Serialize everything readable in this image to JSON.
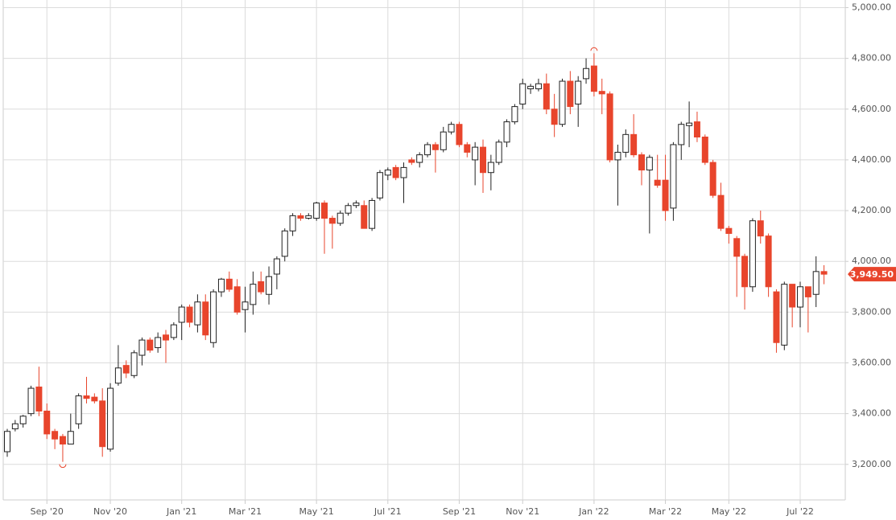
{
  "chart_data": {
    "type": "candlestick",
    "categories": [
      null,
      null,
      null,
      null,
      null,
      "Sep '20",
      null,
      null,
      null,
      null,
      null,
      null,
      null,
      "Nov '20",
      null,
      null,
      null,
      null,
      null,
      null,
      null,
      null,
      "Jan '21",
      null,
      null,
      null,
      null,
      null,
      null,
      null,
      "Mar '21",
      null,
      null,
      null,
      null,
      null,
      null,
      null,
      null,
      "May '21",
      null,
      null,
      null,
      null,
      null,
      null,
      null,
      null,
      "Jul '21",
      null,
      null,
      null,
      null,
      null,
      null,
      null,
      null,
      "Sep '21",
      null,
      null,
      null,
      null,
      null,
      null,
      null,
      "Nov '21",
      null,
      null,
      null,
      null,
      null,
      null,
      null,
      null,
      "Jan '22",
      null,
      null,
      null,
      null,
      null,
      null,
      null,
      null,
      "Mar '22",
      null,
      null,
      null,
      null,
      null,
      null,
      null,
      "May '22",
      null,
      null,
      null,
      null,
      null,
      null,
      null,
      null,
      "Jul '22",
      null,
      null,
      null
    ],
    "open": [
      3250,
      3340,
      3360,
      3400,
      3505,
      3410,
      3330,
      3310,
      3280,
      3360,
      3470,
      3465,
      3450,
      3260,
      3520,
      3590,
      3550,
      3630,
      3690,
      3660,
      3710,
      3700,
      3760,
      3820,
      3750,
      3840,
      3680,
      3880,
      3930,
      3900,
      3810,
      3830,
      3920,
      3870,
      3950,
      4020,
      4120,
      4180,
      4170,
      4170,
      4230,
      4170,
      4150,
      4190,
      4220,
      4220,
      4130,
      4250,
      4340,
      4370,
      4330,
      4400,
      4390,
      4420,
      4460,
      4440,
      4510,
      4540,
      4460,
      4400,
      4450,
      4350,
      4390,
      4470,
      4550,
      4620,
      4680,
      4680,
      4700,
      4600,
      4540,
      4710,
      4620,
      4720,
      4770,
      4670,
      4660,
      4400,
      4430,
      4500,
      4420,
      4360,
      4320,
      4320,
      4210,
      4460,
      4535,
      4550,
      4490,
      4390,
      4260,
      4130,
      4090,
      4020,
      3900,
      4160,
      4100,
      3880,
      3670,
      3910,
      3820,
      3900,
      3870,
      3960
    ],
    "high": [
      3340,
      3375,
      3395,
      3510,
      3585,
      3440,
      3340,
      3320,
      3400,
      3480,
      3545,
      3480,
      3500,
      3520,
      3670,
      3610,
      3650,
      3700,
      3700,
      3720,
      3730,
      3760,
      3830,
      3830,
      3870,
      3870,
      3890,
      3935,
      3960,
      3930,
      3900,
      3960,
      3960,
      3980,
      4020,
      4130,
      4190,
      4190,
      4190,
      4235,
      4240,
      4180,
      4200,
      4230,
      4240,
      4240,
      4250,
      4360,
      4370,
      4380,
      4390,
      4410,
      4430,
      4470,
      4470,
      4530,
      4550,
      4550,
      4470,
      4470,
      4480,
      4420,
      4480,
      4560,
      4620,
      4720,
      4700,
      4720,
      4740,
      4660,
      4720,
      4750,
      4730,
      4800,
      4820,
      4720,
      4670,
      4460,
      4520,
      4580,
      4430,
      4420,
      4420,
      4420,
      4470,
      4550,
      4630,
      4590,
      4500,
      4400,
      4310,
      4140,
      4100,
      4030,
      4170,
      4200,
      4110,
      3890,
      3920,
      3910,
      3920,
      3900,
      4020,
      3985
    ],
    "low": [
      3230,
      3330,
      3345,
      3390,
      3390,
      3300,
      3260,
      3210,
      3280,
      3340,
      3440,
      3440,
      3230,
      3250,
      3510,
      3540,
      3540,
      3590,
      3640,
      3640,
      3600,
      3690,
      3690,
      3740,
      3720,
      3690,
      3660,
      3860,
      3880,
      3790,
      3720,
      3790,
      3870,
      3830,
      3890,
      4000,
      4100,
      4160,
      4165,
      4160,
      4030,
      4050,
      4140,
      4180,
      4210,
      4130,
      4120,
      4240,
      4320,
      4320,
      4230,
      4380,
      4370,
      4410,
      4350,
      4430,
      4500,
      4450,
      4410,
      4300,
      4270,
      4280,
      4380,
      4450,
      4540,
      4600,
      4660,
      4670,
      4580,
      4490,
      4530,
      4580,
      4530,
      4700,
      4650,
      4580,
      4390,
      4220,
      4410,
      4410,
      4300,
      4110,
      4290,
      4160,
      4160,
      4400,
      4450,
      4470,
      4380,
      4250,
      4120,
      4070,
      3860,
      3810,
      3880,
      4070,
      3860,
      3640,
      3650,
      3740,
      3740,
      3720,
      3820,
      3910
    ],
    "close": [
      3330,
      3360,
      3390,
      3500,
      3410,
      3320,
      3300,
      3280,
      3330,
      3470,
      3460,
      3450,
      3270,
      3500,
      3580,
      3560,
      3640,
      3690,
      3650,
      3700,
      3690,
      3750,
      3820,
      3760,
      3840,
      3710,
      3880,
      3930,
      3890,
      3800,
      3840,
      3910,
      3880,
      3940,
      4010,
      4120,
      4180,
      4170,
      4180,
      4230,
      4170,
      4150,
      4190,
      4220,
      4230,
      4130,
      4240,
      4350,
      4360,
      4330,
      4370,
      4390,
      4420,
      4460,
      4440,
      4510,
      4540,
      4460,
      4430,
      4450,
      4350,
      4390,
      4470,
      4550,
      4610,
      4700,
      4690,
      4700,
      4600,
      4540,
      4710,
      4610,
      4710,
      4760,
      4670,
      4660,
      4400,
      4430,
      4500,
      4420,
      4360,
      4410,
      4300,
      4200,
      4460,
      4540,
      4545,
      4490,
      4390,
      4260,
      4130,
      4110,
      4020,
      3900,
      4160,
      4100,
      3900,
      3680,
      3910,
      3820,
      3900,
      3860,
      3960,
      3949.5
    ],
    "last_close_label": "3,949.50",
    "up_color": "#ffffff",
    "down_color": "#e8452c",
    "outline_color": "#222222",
    "ylim": [
      3060,
      5030
    ],
    "yticks": [
      {
        "value": 3200,
        "label": "3,200.00"
      },
      {
        "value": 3400,
        "label": "3,400.00"
      },
      {
        "value": 3600,
        "label": "3,600.00"
      },
      {
        "value": 3800,
        "label": "3,800.00"
      },
      {
        "value": 4000,
        "label": "4,000.00"
      },
      {
        "value": 4200,
        "label": "4,200.00"
      },
      {
        "value": 4400,
        "label": "4,400.00"
      },
      {
        "value": 4600,
        "label": "4,600.00"
      },
      {
        "value": 4800,
        "label": "4,800.00"
      },
      {
        "value": 5000,
        "label": "5,000.00"
      }
    ],
    "grid": true
  }
}
